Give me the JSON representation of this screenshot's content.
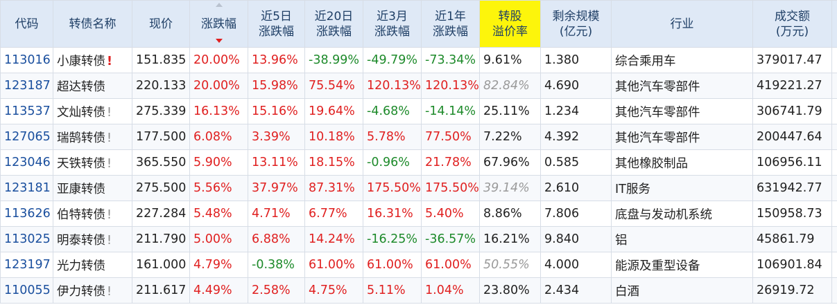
{
  "headers": [
    "代码",
    "转债名称",
    "现价",
    "涨跌幅",
    "近5日\n涨跌幅",
    "近20日\n涨跌幅",
    "近3月\n涨跌幅",
    "近1年\n涨跌幅",
    "转股\n溢价率",
    "剩余规模\n(亿元)",
    "行业",
    "成交额\n(万元)"
  ],
  "sorted_column": "涨跌幅",
  "highlight_column": "转股溢价率",
  "rows": [
    {
      "code": "113016",
      "name": "小康转债",
      "flag": "!",
      "flag_color": "red",
      "price": "151.835",
      "chg": "20.00%",
      "chg5": "13.96%",
      "chg20": "-38.99%",
      "chg3m": "-49.79%",
      "chg1y": "-73.34%",
      "premium": "9.61%",
      "premium_style": "normal",
      "scale": "1.380",
      "industry": "综合乘用车",
      "amount": "379017.47"
    },
    {
      "code": "123187",
      "name": "超达转债",
      "flag": "",
      "flag_color": "",
      "price": "220.133",
      "chg": "20.00%",
      "chg5": "15.98%",
      "chg20": "75.54%",
      "chg3m": "120.13%",
      "chg1y": "120.13%",
      "premium": "82.84%",
      "premium_style": "italic",
      "scale": "4.690",
      "industry": "其他汽车零部件",
      "amount": "419221.27"
    },
    {
      "code": "113537",
      "name": "文灿转债",
      "flag": "!",
      "flag_color": "gray",
      "price": "275.339",
      "chg": "16.13%",
      "chg5": "15.16%",
      "chg20": "19.64%",
      "chg3m": "-4.68%",
      "chg1y": "-14.14%",
      "premium": "25.11%",
      "premium_style": "normal",
      "scale": "1.234",
      "industry": "其他汽车零部件",
      "amount": "306741.79"
    },
    {
      "code": "127065",
      "name": "瑞鹄转债",
      "flag": "!",
      "flag_color": "gray",
      "price": "177.500",
      "chg": "6.08%",
      "chg5": "3.39%",
      "chg20": "10.18%",
      "chg3m": "5.78%",
      "chg1y": "77.50%",
      "premium": "7.22%",
      "premium_style": "normal",
      "scale": "4.392",
      "industry": "其他汽车零部件",
      "amount": "200447.64"
    },
    {
      "code": "123046",
      "name": "天铁转债",
      "flag": "!",
      "flag_color": "gray",
      "price": "365.550",
      "chg": "5.90%",
      "chg5": "13.11%",
      "chg20": "18.15%",
      "chg3m": "-0.96%",
      "chg1y": "21.78%",
      "premium": "67.96%",
      "premium_style": "normal",
      "scale": "0.585",
      "industry": "其他橡胶制品",
      "amount": "106956.11"
    },
    {
      "code": "123181",
      "name": "亚康转债",
      "flag": "",
      "flag_color": "",
      "price": "275.500",
      "chg": "5.56%",
      "chg5": "37.97%",
      "chg20": "87.31%",
      "chg3m": "175.50%",
      "chg1y": "175.50%",
      "premium": "39.14%",
      "premium_style": "italic",
      "scale": "2.610",
      "industry": "IT服务",
      "amount": "631942.77"
    },
    {
      "code": "113626",
      "name": "伯特转债",
      "flag": "!",
      "flag_color": "gray",
      "price": "227.284",
      "chg": "5.48%",
      "chg5": "4.71%",
      "chg20": "6.77%",
      "chg3m": "16.31%",
      "chg1y": "5.40%",
      "premium": "8.86%",
      "premium_style": "normal",
      "scale": "7.806",
      "industry": "底盘与发动机系统",
      "amount": "150958.73"
    },
    {
      "code": "113025",
      "name": "明泰转债",
      "flag": "!",
      "flag_color": "gray",
      "price": "211.790",
      "chg": "5.00%",
      "chg5": "6.88%",
      "chg20": "14.24%",
      "chg3m": "-16.25%",
      "chg1y": "-36.57%",
      "premium": "16.21%",
      "premium_style": "normal",
      "scale": "9.840",
      "industry": "铝",
      "amount": "45861.79"
    },
    {
      "code": "123197",
      "name": "光力转债",
      "flag": "",
      "flag_color": "",
      "price": "161.000",
      "chg": "4.79%",
      "chg5": "-0.38%",
      "chg20": "61.00%",
      "chg3m": "61.00%",
      "chg1y": "61.00%",
      "premium": "50.55%",
      "premium_style": "italic",
      "scale": "4.000",
      "industry": "能源及重型设备",
      "amount": "106901.84"
    },
    {
      "code": "110055",
      "name": "伊力转债",
      "flag": "!",
      "flag_color": "gray",
      "price": "211.617",
      "chg": "4.49%",
      "chg5": "2.58%",
      "chg20": "4.75%",
      "chg3m": "5.11%",
      "chg1y": "1.04%",
      "premium": "23.80%",
      "premium_style": "normal",
      "scale": "2.434",
      "industry": "白酒",
      "amount": "26919.72"
    }
  ]
}
